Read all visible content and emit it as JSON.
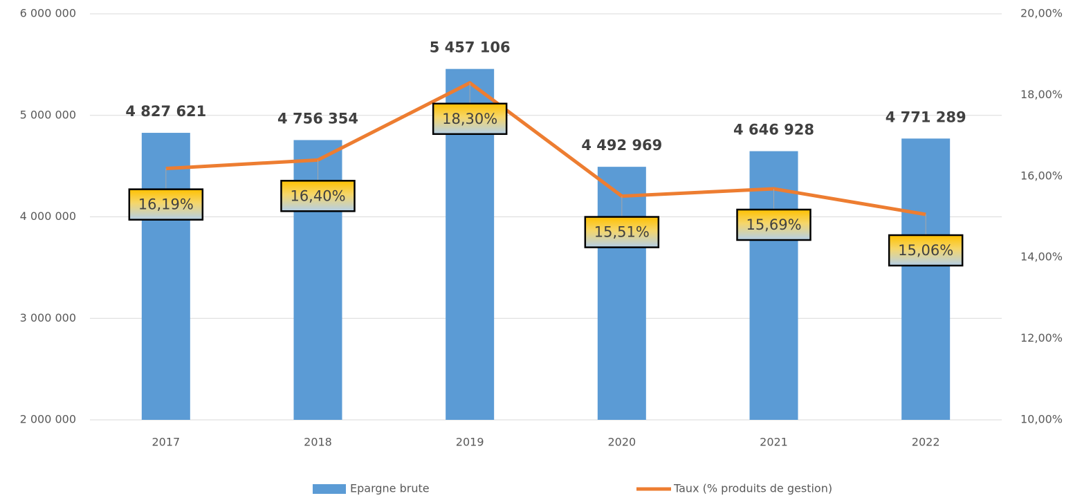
{
  "chart_data": {
    "type": "bar",
    "categories": [
      "2017",
      "2018",
      "2019",
      "2020",
      "2021",
      "2022"
    ],
    "series": [
      {
        "name": "Epargne brute",
        "type": "bar",
        "color": "#5b9bd5",
        "values": [
          4827621,
          4756354,
          5457106,
          4492969,
          4646928,
          4771289
        ],
        "value_labels": [
          "4 827 621",
          "4 756 354",
          "5 457 106",
          "4 492 969",
          "4 646 928",
          "4 771 289"
        ]
      },
      {
        "name": "Taux (% produits de gestion)",
        "type": "line",
        "axis": "y2",
        "color": "#ed7d31",
        "values": [
          16.19,
          16.4,
          18.3,
          15.51,
          15.69,
          15.06
        ],
        "value_labels": [
          "16,19%",
          "16,40%",
          "18,30%",
          "15,51%",
          "15,69%",
          "15,06%"
        ]
      }
    ],
    "ylim": [
      2000000,
      6000000
    ],
    "yticks": [
      {
        "value": 2000000,
        "label": "2 000 000"
      },
      {
        "value": 3000000,
        "label": "3 000 000"
      },
      {
        "value": 4000000,
        "label": "4 000 000"
      },
      {
        "value": 5000000,
        "label": "5 000 000"
      },
      {
        "value": 6000000,
        "label": "6 000 000"
      }
    ],
    "y2lim": [
      10,
      20
    ],
    "y2ticks": [
      {
        "value": 10,
        "label": "10,00%"
      },
      {
        "value": 12,
        "label": "12,00%"
      },
      {
        "value": 14,
        "label": "14,00%"
      },
      {
        "value": 16,
        "label": "16,00%"
      },
      {
        "value": 18,
        "label": "18,00%"
      },
      {
        "value": 20,
        "label": "20,00%"
      }
    ],
    "grid": true
  }
}
